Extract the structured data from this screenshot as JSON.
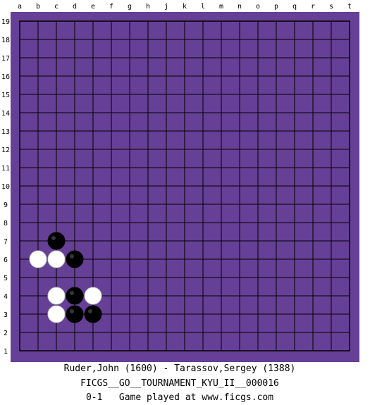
{
  "board": {
    "size": 19,
    "background_color": "#663f96",
    "line_color": "#000000",
    "columns": [
      "a",
      "b",
      "c",
      "d",
      "e",
      "f",
      "g",
      "h",
      "j",
      "k",
      "l",
      "m",
      "n",
      "o",
      "p",
      "q",
      "r",
      "s",
      "t"
    ],
    "rows": [
      "19",
      "18",
      "17",
      "16",
      "15",
      "14",
      "13",
      "12",
      "11",
      "10",
      "9",
      "8",
      "7",
      "6",
      "5",
      "4",
      "3",
      "2",
      "1"
    ]
  },
  "stones": [
    {
      "color": "black",
      "col": "c",
      "row": 7
    },
    {
      "color": "white",
      "col": "b",
      "row": 6
    },
    {
      "color": "white",
      "col": "c",
      "row": 6
    },
    {
      "color": "black",
      "col": "d",
      "row": 6
    },
    {
      "color": "white",
      "col": "c",
      "row": 4
    },
    {
      "color": "black",
      "col": "d",
      "row": 4
    },
    {
      "color": "white",
      "col": "e",
      "row": 4
    },
    {
      "color": "white",
      "col": "c",
      "row": 3
    },
    {
      "color": "black",
      "col": "d",
      "row": 3
    },
    {
      "color": "black",
      "col": "e",
      "row": 3
    }
  ],
  "caption": {
    "players": "Ruder,John (1600) - Tarassov,Sergey (1388)",
    "event": "FICGS__GO__TOURNAMENT_KYU_II__000016",
    "result": "0-1   Game played at www.ficgs.com"
  }
}
